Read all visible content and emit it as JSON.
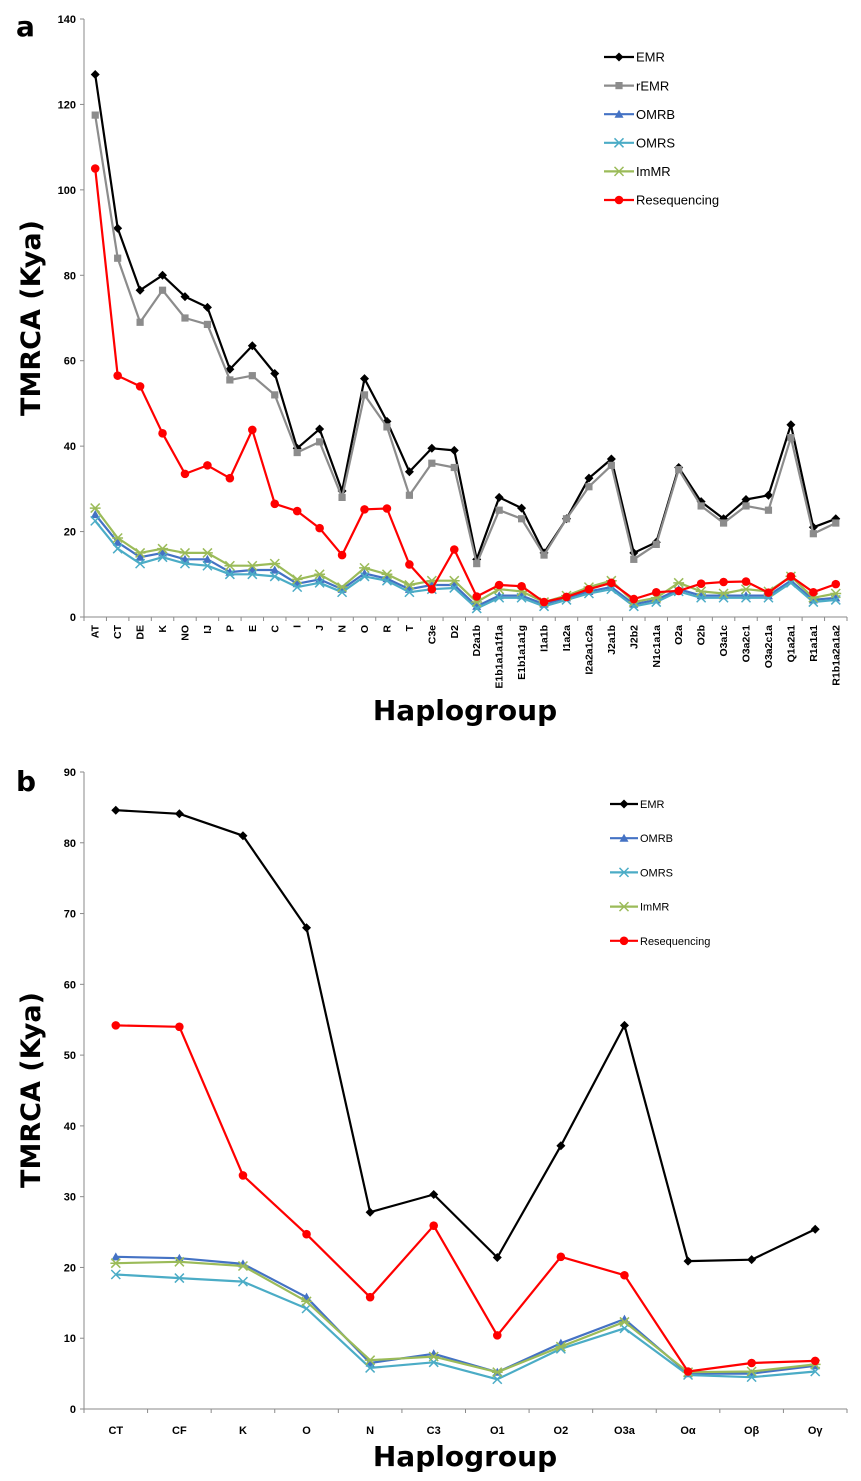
{
  "chart_data": [
    {
      "panel": "a",
      "type": "line",
      "xlabel": "Haplogroup",
      "ylabel": "TMRCA (Kya)",
      "ylim": [
        0,
        140
      ],
      "yticks": [
        0,
        20,
        40,
        60,
        80,
        100,
        120,
        140
      ],
      "grid": false,
      "legend": "top-right",
      "categories": [
        "AT",
        "CT",
        "DE",
        "K",
        "NO",
        "IJ",
        "P",
        "E",
        "C",
        "I",
        "J",
        "N",
        "O",
        "R",
        "T",
        "C3e",
        "D2",
        "D2a1b",
        "E1b1a1a1f1a",
        "E1b1a1a1g",
        "I1a1b",
        "I1a2a",
        "I2a2a1c2a",
        "J2a1b",
        "J2b2",
        "N1c1a1a",
        "O2a",
        "O2b",
        "O3a1c",
        "O3a2c1",
        "O3a2c1a",
        "Q1a2a1",
        "R1a1a1",
        "R1b1a2a1a2"
      ],
      "series": [
        {
          "name": "EMR",
          "color": "#000000",
          "marker": "diamond",
          "values": [
            127,
            91,
            76.5,
            80,
            75,
            72.5,
            58,
            63.5,
            57,
            39.5,
            44,
            29.5,
            55.8,
            45.8,
            34,
            39.5,
            39,
            13.5,
            28,
            25.5,
            15,
            23,
            32.5,
            37,
            15,
            17.5,
            35,
            27,
            23,
            27.5,
            28.5,
            45,
            21,
            23
          ]
        },
        {
          "name": "rEMR",
          "color": "#8c8c8c",
          "marker": "square",
          "values": [
            117.5,
            84,
            69,
            76.5,
            70,
            68.5,
            55.5,
            56.5,
            52,
            38.5,
            41,
            28,
            52,
            44.5,
            28.5,
            36,
            35,
            12.5,
            25,
            23,
            14.5,
            23,
            30.5,
            35.5,
            13.5,
            17,
            34.5,
            26,
            22,
            26,
            25,
            42,
            19.5,
            22
          ]
        },
        {
          "name": "OMRB",
          "color": "#4472c4",
          "marker": "triangle",
          "values": [
            24,
            17.5,
            14,
            15,
            13.5,
            13.5,
            10.5,
            11,
            11,
            7.8,
            8.8,
            6.5,
            10.2,
            9,
            6.5,
            7.5,
            7.5,
            2.5,
            5,
            5,
            3,
            4.5,
            6,
            7,
            3,
            4,
            6.5,
            5,
            5,
            5,
            5,
            8.5,
            4,
            4.5
          ]
        },
        {
          "name": "OMRS",
          "color": "#4bacc6",
          "marker": "x",
          "values": [
            22.5,
            16,
            12.5,
            14,
            12.5,
            12,
            10,
            10,
            9.5,
            7,
            8,
            5.8,
            9.5,
            8.5,
            5.8,
            6.5,
            6.8,
            2,
            4.5,
            4.5,
            2.5,
            4,
            5.5,
            6.5,
            2.5,
            3.5,
            6,
            4.5,
            4.5,
            4.5,
            4.5,
            8,
            3.5,
            4
          ]
        },
        {
          "name": "ImMR",
          "color": "#9bbb59",
          "marker": "star",
          "values": [
            25.5,
            18.5,
            15,
            16,
            15,
            15,
            12,
            12,
            12.5,
            8.8,
            10,
            7,
            11.5,
            10,
            7.5,
            8.5,
            8.5,
            3.5,
            6.5,
            6,
            3.5,
            5,
            7,
            8.5,
            3.5,
            4.5,
            8,
            6,
            5.5,
            6.5,
            6,
            9.5,
            4.5,
            5.5
          ]
        },
        {
          "name": "Resequencing",
          "color": "#ff0000",
          "marker": "circle",
          "values": [
            105,
            56.5,
            54,
            43,
            33.5,
            35.5,
            32.5,
            43.8,
            26.5,
            24.8,
            20.8,
            14.5,
            25.2,
            25.4,
            12.3,
            6.5,
            15.8,
            4.8,
            7.5,
            7.2,
            3.5,
            4.7,
            6.5,
            8,
            4.2,
            5.8,
            6.1,
            7.8,
            8.2,
            8.3,
            5.7,
            9.5,
            5.8,
            7.7
          ]
        }
      ]
    },
    {
      "panel": "b",
      "type": "line",
      "xlabel": "Haplogroup",
      "ylabel": "TMRCA (Kya)",
      "ylim": [
        0,
        90
      ],
      "yticks": [
        0,
        10,
        20,
        30,
        40,
        50,
        60,
        70,
        80,
        90
      ],
      "grid": false,
      "legend": "top-right",
      "categories": [
        "CT",
        "CF",
        "K",
        "O",
        "N",
        "C3",
        "O1",
        "O2",
        "O3a",
        "Oα",
        "Oβ",
        "Oγ"
      ],
      "series": [
        {
          "name": "EMR",
          "color": "#000000",
          "marker": "diamond",
          "values": [
            84.6,
            84.1,
            81,
            68,
            27.8,
            30.3,
            21.4,
            37.2,
            54.2,
            20.9,
            21.1,
            25.4
          ]
        },
        {
          "name": "OMRB",
          "color": "#4472c4",
          "marker": "triangle",
          "values": [
            21.5,
            21.3,
            20.5,
            15.8,
            6.5,
            7.8,
            5.2,
            9.3,
            12.7,
            5,
            5,
            6.1
          ]
        },
        {
          "name": "OMRS",
          "color": "#4bacc6",
          "marker": "x",
          "values": [
            19,
            18.5,
            18,
            14.2,
            5.8,
            6.6,
            4.2,
            8.5,
            11.4,
            4.8,
            4.5,
            5.3
          ]
        },
        {
          "name": "ImMR",
          "color": "#9bbb59",
          "marker": "star",
          "values": [
            20.6,
            20.8,
            20.2,
            15.2,
            6.9,
            7.4,
            5.2,
            8.8,
            12.3,
            5.2,
            5.3,
            6.3
          ]
        },
        {
          "name": "Resequencing",
          "color": "#ff0000",
          "marker": "circle",
          "values": [
            54.2,
            54,
            33,
            24.7,
            15.8,
            25.9,
            10.4,
            21.5,
            18.9,
            5.3,
            6.5,
            6.8
          ]
        }
      ]
    }
  ]
}
